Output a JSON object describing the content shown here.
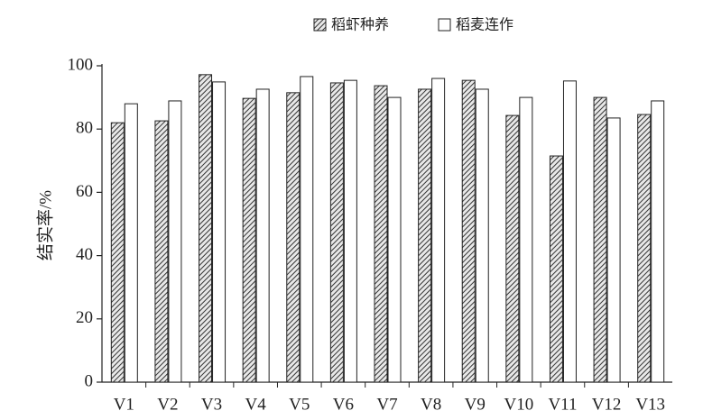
{
  "chart_data": {
    "type": "bar",
    "y_label": "结实率/%",
    "categories": [
      "V1",
      "V2",
      "V3",
      "V4",
      "V5",
      "V6",
      "V7",
      "V8",
      "V9",
      "V10",
      "V11",
      "V12",
      "V13"
    ],
    "series": [
      {
        "name": "稻虾种养",
        "color": "#333333",
        "hatch": true,
        "values": [
          82.0,
          82.6,
          97.2,
          89.7,
          91.5,
          94.6,
          93.7,
          92.6,
          95.4,
          84.3,
          71.5,
          90.0,
          84.6
        ]
      },
      {
        "name": "稻麦连作",
        "color": "#ffffff",
        "hatch": false,
        "values": [
          88.0,
          88.9,
          94.9,
          92.6,
          96.6,
          95.4,
          90.0,
          96.0,
          92.6,
          90.0,
          95.2,
          83.5,
          88.9
        ]
      }
    ],
    "ylim": [
      0,
      100
    ],
    "yticks": [
      0,
      20,
      40,
      60,
      80,
      100
    ]
  }
}
